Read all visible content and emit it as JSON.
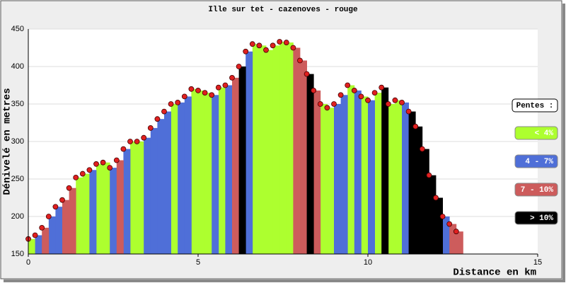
{
  "chart_data": {
    "type": "bar",
    "title": "Ille sur tet - cazenoves - rouge",
    "x_label": "Distance en km",
    "y_label": "Dénivelé en metres",
    "legend_title": "Pentes :",
    "xlim": [
      0,
      15
    ],
    "xticks": [
      0,
      5,
      10,
      15
    ],
    "ylim": [
      150,
      450
    ],
    "yticks": [
      150,
      200,
      250,
      300,
      350,
      400,
      450
    ],
    "grid": true,
    "legend": "right",
    "point_color": "#e02020",
    "series": [
      {
        "name": "< 4%",
        "color": "#adff2f",
        "x": [
          0,
          1.4,
          1.6,
          2.0,
          2.2,
          3.0,
          3.2,
          4.2,
          4.8,
          5.0,
          5.2,
          5.6,
          6.6,
          6.8,
          7.0,
          7.2,
          7.4,
          7.6,
          8.6,
          8.8,
          9.4,
          9.8,
          10.2,
          10.6,
          10.8
        ],
        "values": [
          170,
          252,
          257,
          270,
          272,
          300,
          300,
          350,
          370,
          368,
          365,
          372,
          430,
          428,
          422,
          428,
          433,
          432,
          350,
          345,
          375,
          360,
          365,
          350,
          355
        ]
      },
      {
        "name": "4 - 7%",
        "color": "#4f6fd8",
        "x": [
          0.2,
          0.6,
          0.8,
          1.8,
          2.4,
          2.8,
          3.4,
          3.6,
          3.8,
          4.0,
          4.4,
          4.6,
          5.4,
          5.8,
          6.4,
          9.0,
          9.2,
          9.6,
          10.0,
          11.0,
          12.2
        ],
        "values": [
          175,
          200,
          213,
          262,
          265,
          290,
          305,
          318,
          330,
          340,
          352,
          360,
          362,
          375,
          420,
          350,
          362,
          368,
          355,
          352,
          200
        ]
      },
      {
        "name": "7 - 10%",
        "color": "#cd5c5c",
        "x": [
          0.4,
          1.0,
          1.2,
          2.6,
          6.0,
          7.8,
          8.0,
          8.4,
          12.4,
          12.6
        ],
        "values": [
          185,
          222,
          238,
          275,
          385,
          425,
          408,
          368,
          190,
          180
        ]
      },
      {
        "name": "> 10%",
        "color": "#000000",
        "x": [
          6.2,
          8.2,
          10.4,
          11.2,
          11.4,
          11.6,
          11.8,
          12.0
        ],
        "values": [
          400,
          390,
          372,
          340,
          320,
          290,
          255,
          225
        ]
      }
    ]
  }
}
